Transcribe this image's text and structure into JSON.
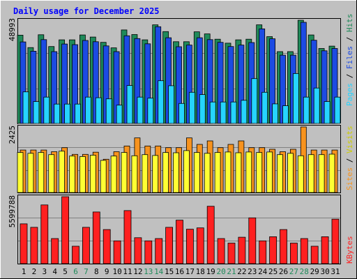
{
  "chart_data": {
    "type": "bar",
    "title": "Daily usage for December 2025",
    "days": [
      "1",
      "2",
      "3",
      "4",
      "5",
      "6",
      "7",
      "8",
      "9",
      "10",
      "11",
      "12",
      "13",
      "14",
      "15",
      "16",
      "17",
      "18",
      "19",
      "20",
      "21",
      "22",
      "23",
      "24",
      "25",
      "26",
      "27",
      "28",
      "29",
      "30",
      "31"
    ],
    "weekend_days": [
      6,
      7,
      13,
      14,
      20,
      21,
      27,
      28
    ],
    "panels": {
      "hits_files_pages": {
        "max_label": "48993",
        "ylim": [
          0,
          48993
        ],
        "side_label": [
          "Pages",
          "Files",
          "Hits"
        ],
        "series": [
          {
            "name": "Hits",
            "color": "#1f8a5a",
            "values": [
              41900,
              36000,
              42100,
              36500,
              39700,
              39700,
              42000,
              41000,
              38500,
              35900,
              44400,
              42200,
              39700,
              46800,
              43600,
              38800,
              38800,
              43500,
              42500,
              40000,
              38100,
              39700,
              40000,
              46800,
              41200,
              34100,
              34100,
              49000,
              42000,
              35600,
              36700
            ]
          },
          {
            "name": "Files",
            "color": "#1c4be3",
            "values": [
              38700,
              34300,
              39800,
              34100,
              37700,
              37400,
              39400,
              38800,
              36800,
              34100,
              41600,
              40300,
              37800,
              45900,
              40700,
              36400,
              37200,
              40700,
              39800,
              38500,
              36500,
              37200,
              38400,
              44900,
              40200,
              32400,
              32400,
              48000,
              39500,
              34500,
              35600
            ]
          },
          {
            "name": "Pages",
            "color": "#26d4ff",
            "values": [
              15000,
              10400,
              12500,
              9200,
              9200,
              9200,
              12500,
              12200,
              11700,
              8700,
              18000,
              12500,
              12000,
              20300,
              17900,
              9500,
              14800,
              13700,
              10200,
              10200,
              10200,
              11000,
              21300,
              14800,
              9300,
              8400,
              23700,
              12500,
              16800,
              10400,
              12500
            ]
          }
        ]
      },
      "visits_sites": {
        "max_label": "2425",
        "ylim": [
          0,
          2425
        ],
        "side_label": [
          "Sites",
          "Visits"
        ],
        "series": [
          {
            "name": "Visits",
            "color": "#f7931e",
            "values": [
              1570,
              1570,
              1570,
              1510,
              1660,
              1410,
              1410,
              1490,
              1230,
              1510,
              1720,
              2020,
              1720,
              1720,
              1660,
              1660,
              2020,
              1780,
              1910,
              1660,
              1780,
              1910,
              1660,
              1660,
              1600,
              1510,
              1600,
              2425,
              1570,
              1570,
              1570
            ]
          },
          {
            "name": "Sites",
            "color": "#ffff33",
            "values": [
              1480,
              1450,
              1480,
              1400,
              1530,
              1350,
              1330,
              1380,
              1190,
              1350,
              1480,
              1360,
              1400,
              1370,
              1480,
              1470,
              1550,
              1480,
              1450,
              1480,
              1500,
              1470,
              1500,
              1480,
              1500,
              1400,
              1450,
              1360,
              1400,
              1400,
              1420
            ]
          }
        ]
      },
      "kbytes": {
        "max_label": "5599788",
        "ylim": [
          0,
          5599788
        ],
        "side_label": [
          "KBytes"
        ],
        "series": [
          {
            "name": "KBytes",
            "color": "#ff2020",
            "values": [
              3330000,
              3040000,
              4910000,
              2100000,
              5600000,
              1460000,
              3040000,
              4320000,
              2850000,
              1910000,
              4440000,
              2170000,
              1910000,
              2100000,
              3040000,
              3640000,
              2880000,
              2990000,
              4800000,
              2100000,
              1720000,
              2210000,
              3830000,
              1910000,
              2250000,
              2850000,
              1720000,
              2100000,
              1460000,
              2250000,
              3720000
            ]
          }
        ]
      }
    }
  }
}
